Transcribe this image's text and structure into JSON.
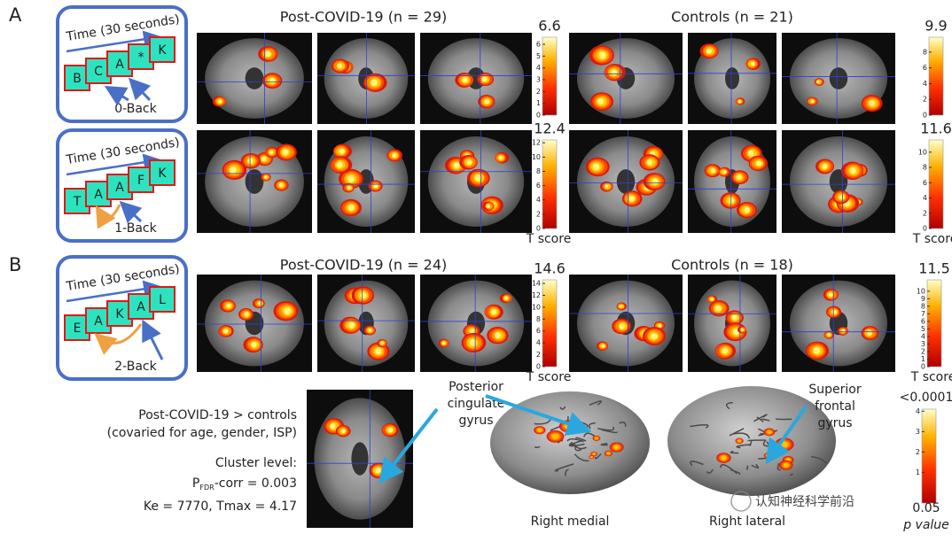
{
  "panel_labels": [
    "A",
    "B"
  ],
  "tasks": [
    {
      "time": "Time (30 seconds)",
      "letters": [
        "B",
        "C",
        "A",
        "*",
        "K"
      ],
      "label": "0-Back"
    },
    {
      "time": "Time (30 seconds)",
      "letters": [
        "T",
        "A",
        "A",
        "F",
        "K"
      ],
      "label": "1-Back"
    },
    {
      "time": "Time (30 seconds)",
      "letters": [
        "E",
        "A",
        "K",
        "A",
        "L"
      ],
      "label": "2-Back"
    }
  ],
  "groups": [
    {
      "title": "Post-COVID-19 (n = 29)"
    },
    {
      "title": "Controls (n = 21)"
    },
    {
      "title": "Post-COVID-19 (n = 24)"
    },
    {
      "title": "Controls (n = 18)"
    }
  ],
  "colorbars": [
    {
      "max": 6.6,
      "ticks": [
        0,
        1,
        2,
        3,
        4,
        5,
        6
      ]
    },
    {
      "max": 9.9,
      "ticks": [
        0,
        2,
        4,
        6,
        8
      ]
    },
    {
      "max": 12.4,
      "ticks": [
        0,
        2,
        4,
        6,
        8,
        10,
        12
      ],
      "unit": "T score"
    },
    {
      "max": 11.6,
      "ticks": [
        0,
        2,
        4,
        6,
        8,
        10
      ],
      "unit": "T score"
    },
    {
      "max": 14.6,
      "ticks": [
        0,
        2,
        4,
        6,
        8,
        10,
        12,
        14
      ],
      "unit": "T score"
    },
    {
      "max": 11.5,
      "ticks": [
        0,
        1,
        2,
        3,
        4,
        5,
        6,
        7,
        8,
        9,
        10
      ],
      "unit": "T score"
    }
  ],
  "contrast": {
    "title": "Post-COVID-19 > controls",
    "note": "(covaried for age, gender, ISP)",
    "cluster": "Cluster level:",
    "p_symbol": "P",
    "p_sub": "FDR",
    "p_rest": "-corr = 0.003",
    "stats": "Ke = 7770, Tmax = 4.17"
  },
  "regions": [
    {
      "lines": [
        "Posterior",
        "cingulate",
        "gyrus"
      ]
    },
    {
      "lines": [
        "Superior",
        "frontal",
        "gyrus"
      ]
    }
  ],
  "views": [
    "Right medial",
    "Right lateral"
  ],
  "pbar": {
    "top": "<0.0001",
    "ticks": [
      1,
      2,
      3,
      4
    ],
    "ylim": [
      -0.5,
      4.1
    ],
    "bottom": 0.05,
    "label": "p value"
  },
  "watermark": "认知神经科学前沿"
}
